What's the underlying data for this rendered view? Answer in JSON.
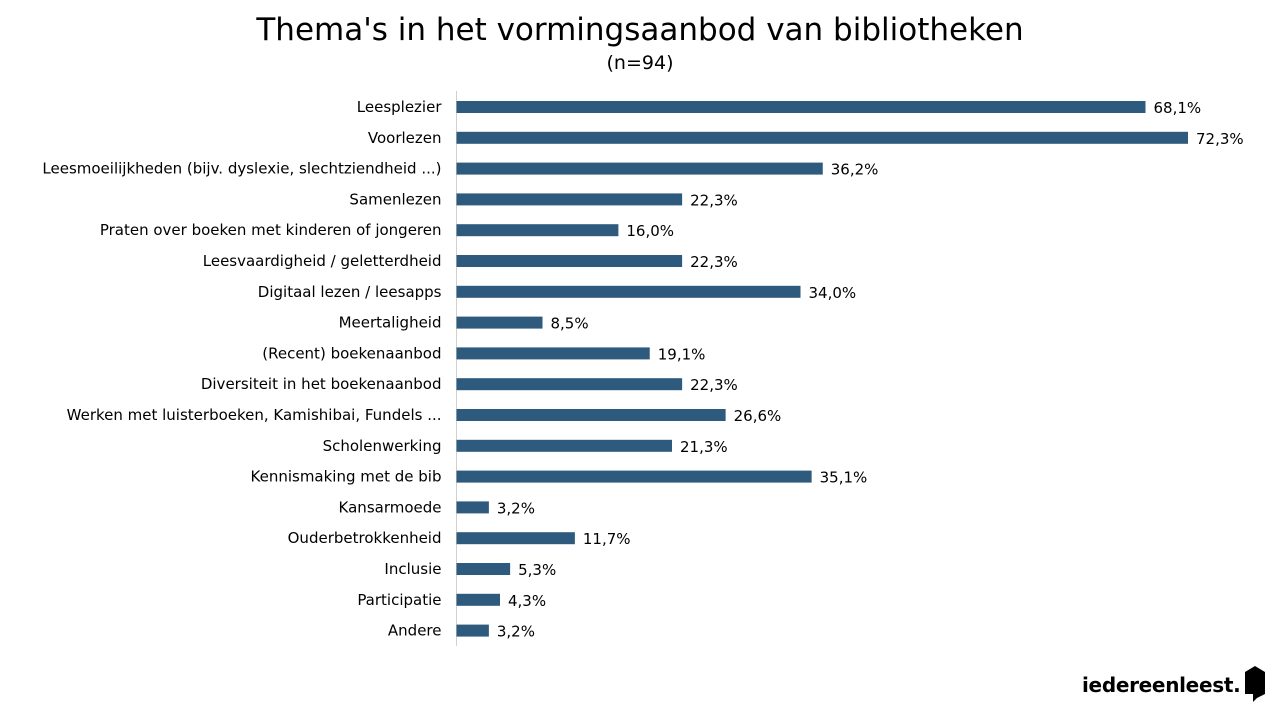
{
  "chart_data": {
    "type": "bar",
    "orientation": "horizontal",
    "title": "Thema's in het vormingsaanbod van bibliotheken",
    "subtitle": "(n=94)",
    "categories": [
      "Leesplezier",
      "Voorlezen",
      "Leesmoeilijkheden (bijv. dyslexie, slechtziendheid ...)",
      "Samenlezen",
      "Praten over boeken met kinderen of jongeren",
      "Leesvaardigheid / geletterdheid",
      "Digitaal lezen / leesapps",
      "Meertaligheid",
      "(Recent) boekenaanbod",
      "Diversiteit in het boekenaanbod",
      "Werken met luisterboeken, Kamishibai, Fundels ...",
      "Scholenwerking",
      "Kennismaking met de bib",
      "Kansarmoede",
      "Ouderbetrokkenheid",
      "Inclusie",
      "Participatie",
      "Andere"
    ],
    "values": [
      68.1,
      72.3,
      36.2,
      22.3,
      16.0,
      22.3,
      34.0,
      8.5,
      19.1,
      22.3,
      26.6,
      21.3,
      35.1,
      3.2,
      11.7,
      5.3,
      4.3,
      3.2
    ],
    "value_labels": [
      "68,1%",
      "72,3%",
      "36,2%",
      "22,3%",
      "16,0%",
      "22,3%",
      "34,0%",
      "8,5%",
      "19,1%",
      "22,3%",
      "26,6%",
      "21,3%",
      "35,1%",
      "3,2%",
      "11,7%",
      "5,3%",
      "4,3%",
      "3,2%"
    ],
    "xlim": [
      0,
      72.3
    ],
    "grid": false,
    "legend": "none",
    "bar_color": "#2e5a7d",
    "axis_color": "#d0d0d0"
  },
  "brand": {
    "logo_text": "iedereenleest."
  }
}
